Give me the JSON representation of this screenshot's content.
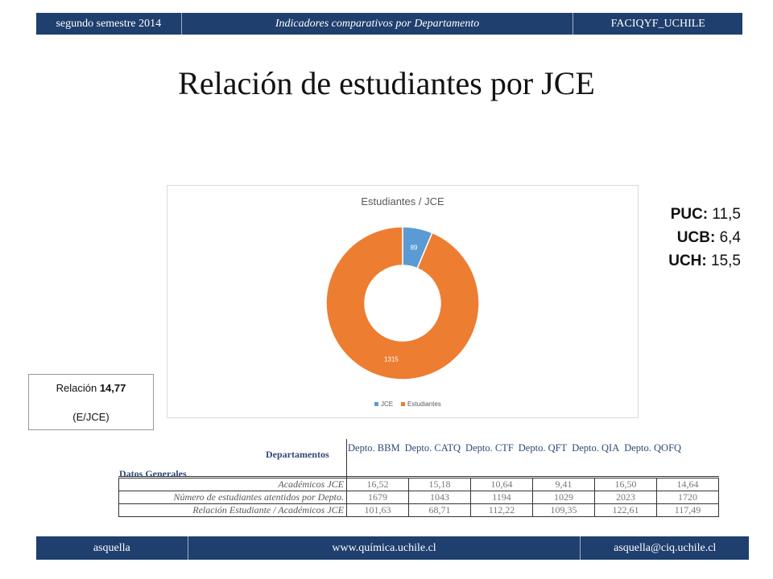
{
  "header": {
    "semester": "segundo semestre 2014",
    "subtitle": "Indicadores comparativos por Departamento",
    "org": "FACIQYF_UCHILE"
  },
  "title": "Relación de estudiantes por JCE",
  "chart_data": {
    "type": "pie",
    "title": "Estudiantes / JCE",
    "categories": [
      "JCE",
      "Estudiantes"
    ],
    "values": [
      89,
      1315
    ],
    "data_labels": [
      "89",
      "1315"
    ],
    "colors": [
      "#5b9bd5",
      "#ed7d31"
    ],
    "donut": true,
    "legend_position": "bottom"
  },
  "stats": [
    {
      "label": "PUC:",
      "value": "11,5"
    },
    {
      "label": "UCB:",
      "value": "6,4"
    },
    {
      "label": "UCH:",
      "value": "15,5"
    }
  ],
  "ratio_box": {
    "prefix": "Relación",
    "value": "14,77",
    "note": "(E/JCE)"
  },
  "table": {
    "departamentos_label": "Departamentos",
    "datos_label": "Datos Generales",
    "departments": [
      "Depto. BBM",
      "Depto. CATQ",
      "Depto. CTF",
      "Depto. QFT",
      "Depto. QIA",
      "Depto. QOFQ"
    ],
    "rows": [
      {
        "label": "Académicos JCE",
        "values": [
          "16,52",
          "15,18",
          "10,64",
          "9,41",
          "16,50",
          "14,64"
        ]
      },
      {
        "label": "Número de estudiantes atentidos por Depto.",
        "values": [
          "1679",
          "1043",
          "1194",
          "1029",
          "2023",
          "1720"
        ]
      },
      {
        "label": "Relación Estudiante / Académicos JCE",
        "values": [
          "101,63",
          "68,71",
          "112,22",
          "109,35",
          "122,61",
          "117,49"
        ]
      }
    ]
  },
  "footer": {
    "author": "asquella",
    "website": "www.química.uchile.cl",
    "email": "asquella@ciq.uchile.cl"
  }
}
